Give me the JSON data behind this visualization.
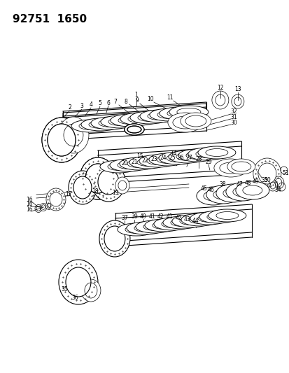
{
  "title": "92751  1650",
  "bg_color": "#ffffff",
  "fig_width": 4.14,
  "fig_height": 5.33,
  "dpi": 100,
  "lw_thin": 0.5,
  "lw_med": 0.8,
  "lw_thick": 1.1
}
